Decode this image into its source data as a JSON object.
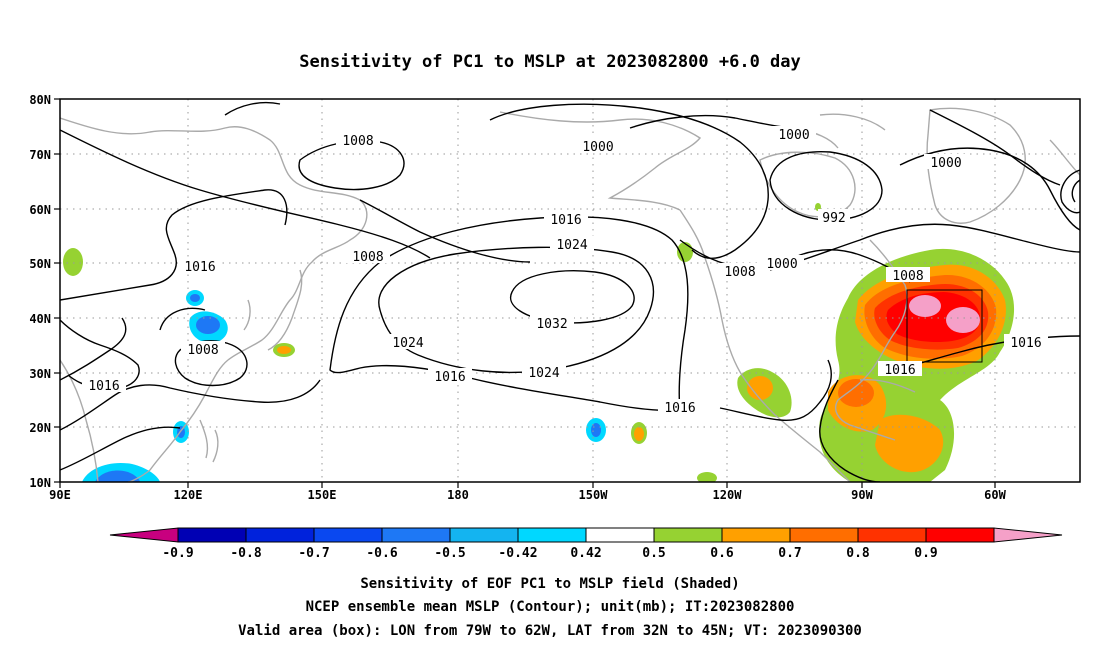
{
  "title": "Sensitivity of PC1 to MSLP at 2023082800 +6.0 day",
  "map": {
    "lon_labels": [
      "90E",
      "120E",
      "150E",
      "180",
      "150W",
      "120W",
      "90W",
      "60W"
    ],
    "lat_labels": [
      "80N",
      "70N",
      "60N",
      "50N",
      "40N",
      "30N",
      "20N",
      "10N"
    ],
    "grid": "dotted",
    "valid_box_label": "Valid area (box)"
  },
  "contour_labels": {
    "c1008_a": "1008",
    "c1008_b": "1008",
    "c1008_c": "1008",
    "c1008_d": "1008",
    "c1008_e": "1008",
    "c1000_a": "1000",
    "c1000_b": "1000",
    "c1000_c": "1000",
    "c1000_d": "1000",
    "c992": "992",
    "c1016_a": "1016",
    "c1016_b": "1016",
    "c1016_c": "1016",
    "c1016_d": "1016",
    "c1016_e": "1016",
    "c1016_f": "1016",
    "c1024_a": "1024",
    "c1024_b": "1024",
    "c1024_c": "1024",
    "c1032": "1032"
  },
  "colorbar": {
    "labels": [
      "-0.9",
      "-0.8",
      "-0.7",
      "-0.6",
      "-0.5",
      "-0.42",
      "0.42",
      "0.5",
      "0.6",
      "0.7",
      "0.8",
      "0.9"
    ],
    "colors": [
      "#c8007f",
      "#0000b4",
      "#0022dc",
      "#0a48f0",
      "#1e78f5",
      "#14b4f0",
      "#00d8ff",
      "#ffffff",
      "#96d232",
      "#ffa000",
      "#ff6e00",
      "#ff3200",
      "#ff0000",
      "#f5a0c8"
    ]
  },
  "footer": {
    "line1": "Sensitivity of EOF PC1 to MSLP field (Shaded)",
    "line2": "NCEP ensemble mean MSLP (Contour); unit(mb); IT:2023082800",
    "line3": "Valid area (box): LON from 79W to 62W, LAT from 32N to 45N; VT: 2023090300"
  }
}
